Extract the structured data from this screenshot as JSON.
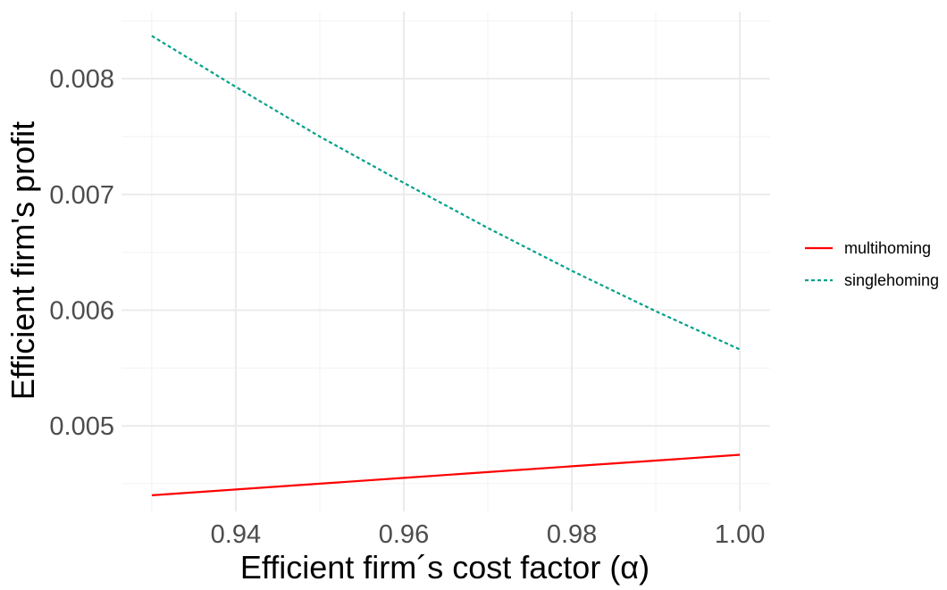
{
  "chart_data": {
    "type": "line",
    "xlabel": "Efficient firm´s cost factor (α)",
    "ylabel": "Efficient firm's profit",
    "xlim": [
      0.9264,
      1.0036
    ],
    "ylim": [
      0.00426,
      0.00858
    ],
    "x_ticks": [
      0.94,
      0.96,
      0.98,
      1.0
    ],
    "x_tick_labels": [
      "0.94",
      "0.96",
      "0.98",
      "1.00"
    ],
    "x_minor_ticks": [
      0.93,
      0.95,
      0.97,
      0.99
    ],
    "y_ticks": [
      0.005,
      0.006,
      0.007,
      0.008
    ],
    "y_tick_labels": [
      "0.005",
      "0.006",
      "0.007",
      "0.008"
    ],
    "y_minor_ticks": [
      0.0045,
      0.0055,
      0.0065,
      0.0075,
      0.0085
    ],
    "grid": true,
    "legend_position": "right",
    "series": [
      {
        "name": "multihoming",
        "color": "#ff0000",
        "linestyle": "solid",
        "x": [
          0.93,
          0.94,
          0.95,
          0.96,
          0.97,
          0.98,
          0.99,
          1.0
        ],
        "y": [
          0.0044,
          0.00445,
          0.0045,
          0.00455,
          0.0046,
          0.00465,
          0.0047,
          0.00475
        ]
      },
      {
        "name": "singlehoming",
        "color": "#00a08a",
        "linestyle": "dashed",
        "x": [
          0.93,
          0.94,
          0.95,
          0.96,
          0.97,
          0.98,
          0.99,
          1.0
        ],
        "y": [
          0.00837,
          0.00793,
          0.0075,
          0.0071,
          0.00671,
          0.00634,
          0.00599,
          0.00566
        ]
      }
    ]
  }
}
